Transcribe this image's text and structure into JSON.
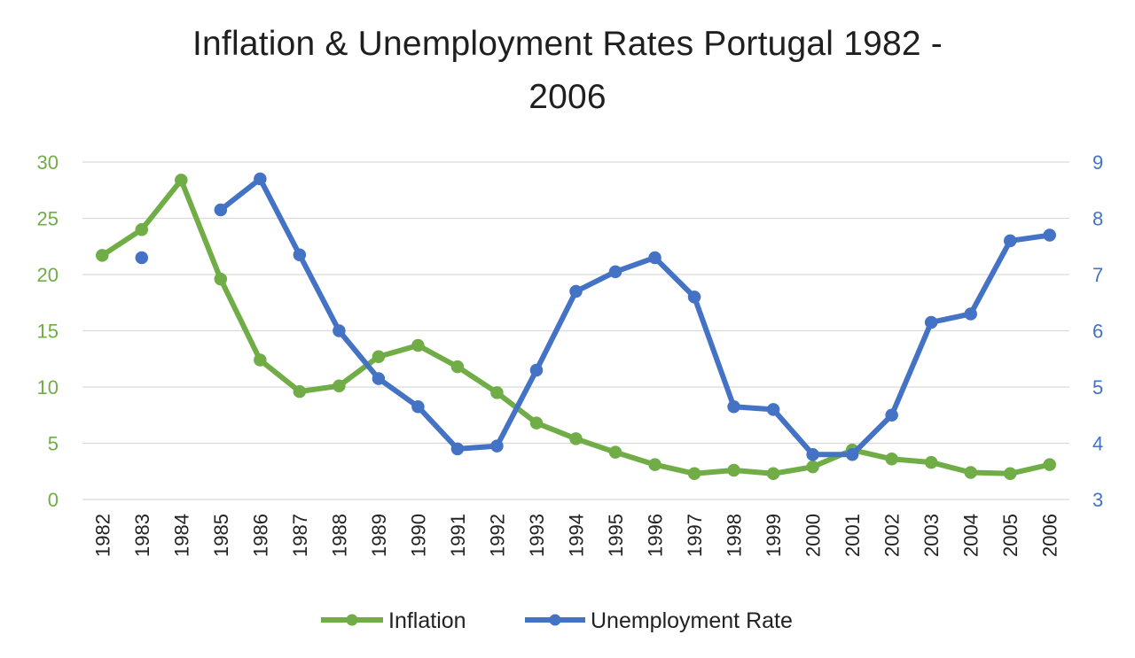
{
  "colors": {
    "inflation": "#70ad47",
    "unemployment": "#4472c4",
    "grid": "#d9d9d9"
  },
  "chart_data": {
    "type": "line",
    "title_lines": [
      "Inflation & Unemployment Rates Portugal 1982 -",
      "2006"
    ],
    "categories": [
      "1982",
      "1983",
      "1984",
      "1985",
      "1986",
      "1987",
      "1988",
      "1989",
      "1990",
      "1991",
      "1992",
      "1993",
      "1994",
      "1995",
      "1996",
      "1997",
      "1998",
      "1999",
      "2000",
      "2001",
      "2002",
      "2003",
      "2004",
      "2005",
      "2006"
    ],
    "series": [
      {
        "name": "Inflation",
        "axis": "left",
        "values": [
          21.7,
          24.0,
          28.4,
          19.6,
          12.4,
          9.6,
          10.1,
          12.7,
          13.7,
          11.8,
          9.5,
          6.8,
          5.4,
          4.2,
          3.1,
          2.3,
          2.6,
          2.3,
          2.9,
          4.4,
          3.6,
          3.3,
          2.4,
          2.3,
          3.1
        ]
      },
      {
        "name": "Unemployment Rate",
        "axis": "right",
        "values": [
          null,
          7.3,
          null,
          8.15,
          8.7,
          7.35,
          6.0,
          5.15,
          4.65,
          3.9,
          3.95,
          5.3,
          6.7,
          7.05,
          7.3,
          6.6,
          4.65,
          4.6,
          3.8,
          3.8,
          4.5,
          6.15,
          6.3,
          7.6,
          7.7
        ]
      }
    ],
    "y_left": {
      "min": 0,
      "max": 30,
      "step": 5,
      "ticks": [
        "0",
        "5",
        "10",
        "15",
        "20",
        "25",
        "30"
      ]
    },
    "y_right": {
      "min": 3,
      "max": 9,
      "step": 1,
      "ticks": [
        "3",
        "4",
        "5",
        "6",
        "7",
        "8",
        "9"
      ]
    },
    "grid": true,
    "legend_position": "bottom"
  }
}
